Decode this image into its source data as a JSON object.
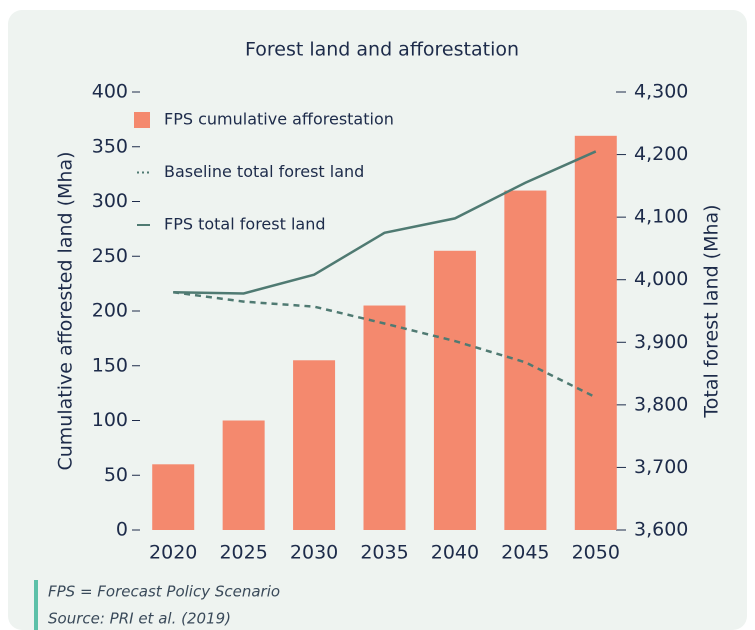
{
  "chart_data": {
    "type": "bar",
    "title": "Forest land and afforestation",
    "categories": [
      "2020",
      "2025",
      "2030",
      "2035",
      "2040",
      "2045",
      "2050"
    ],
    "series": [
      {
        "name": "FPS cumulative afforestation",
        "type": "bar",
        "color": "#f4896e",
        "values": [
          60,
          100,
          155,
          205,
          255,
          310,
          360
        ]
      },
      {
        "name": "Baseline total forest land",
        "type": "line",
        "style": "dashed",
        "axis": "y2",
        "color": "#4f7a72",
        "values": [
          3980,
          3965,
          3957,
          3930,
          3902,
          3868,
          3812
        ]
      },
      {
        "name": "FPS total forest land",
        "type": "line",
        "style": "solid",
        "axis": "y2",
        "color": "#4f7a72",
        "values": [
          3980,
          3978,
          4008,
          4075,
          4098,
          4155,
          4205
        ]
      }
    ],
    "ylabel": "Cumulative afforested land (Mha)",
    "y2label": "Total forest land (Mha)",
    "ylim": [
      0,
      400
    ],
    "yticks": [
      0,
      50,
      100,
      150,
      200,
      250,
      300,
      350,
      400
    ],
    "y2lim": [
      3600,
      4300
    ],
    "y2ticks": [
      {
        "value": 3600,
        "label": "3,600"
      },
      {
        "value": 3700,
        "label": "3,700"
      },
      {
        "value": 3800,
        "label": "3,800"
      },
      {
        "value": 3900,
        "label": "3,900"
      },
      {
        "value": 4000,
        "label": "4,000"
      },
      {
        "value": 4100,
        "label": "4,100"
      },
      {
        "value": 4200,
        "label": "4,200"
      },
      {
        "value": 4300,
        "label": "4,300"
      }
    ],
    "legend": "upper left",
    "notes": [
      "FPS = Forecast Policy Scenario",
      "Source: PRI et al. (2019)"
    ]
  }
}
